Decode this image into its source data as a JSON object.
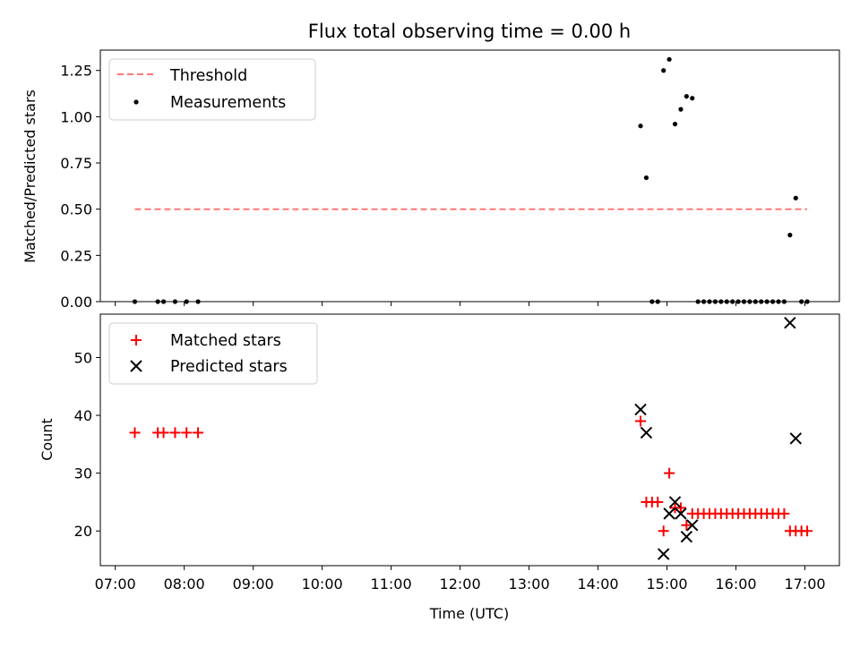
{
  "chart_data": [
    {
      "type": "scatter",
      "title": "Flux total observing time = 0.00 h",
      "xlabel": "",
      "ylabel": "Matched/Predicted stars",
      "xlim": [
        "06:47",
        "17:30"
      ],
      "ylim": [
        0,
        1.36
      ],
      "yticks": [
        0.0,
        0.25,
        0.5,
        0.75,
        1.0,
        1.25
      ],
      "ytick_labels": [
        "0.00",
        "0.25",
        "0.50",
        "0.75",
        "1.00",
        "1.25"
      ],
      "legend_position": "upper-left",
      "threshold": {
        "name": "Threshold",
        "x": [
          "07:17",
          "17:02"
        ],
        "y": 0.5,
        "color": "#ff7777",
        "style": "dashed"
      },
      "series": [
        {
          "name": "Measurements",
          "color": "#000000",
          "marker": "dot",
          "points": [
            [
              "07:17",
              0
            ],
            [
              "07:37",
              0
            ],
            [
              "07:42",
              0
            ],
            [
              "07:52",
              0
            ],
            [
              "08:02",
              0
            ],
            [
              "08:12",
              0
            ],
            [
              "14:37",
              0.95
            ],
            [
              "14:42",
              0.67
            ],
            [
              "14:47",
              0
            ],
            [
              "14:52",
              0
            ],
            [
              "14:57",
              1.25
            ],
            [
              "15:02",
              1.31
            ],
            [
              "15:07",
              0.96
            ],
            [
              "15:12",
              1.04
            ],
            [
              "15:17",
              1.11
            ],
            [
              "15:22",
              1.1
            ],
            [
              "15:27",
              0
            ],
            [
              "15:32",
              0
            ],
            [
              "15:37",
              0
            ],
            [
              "15:42",
              0
            ],
            [
              "15:47",
              0
            ],
            [
              "15:52",
              0
            ],
            [
              "15:57",
              0
            ],
            [
              "16:02",
              0
            ],
            [
              "16:07",
              0
            ],
            [
              "16:12",
              0
            ],
            [
              "16:17",
              0
            ],
            [
              "16:22",
              0
            ],
            [
              "16:27",
              0
            ],
            [
              "16:32",
              0
            ],
            [
              "16:37",
              0
            ],
            [
              "16:42",
              0
            ],
            [
              "16:47",
              0.36
            ],
            [
              "16:52",
              0.56
            ],
            [
              "16:57",
              0
            ],
            [
              "17:02",
              0
            ]
          ]
        }
      ]
    },
    {
      "type": "scatter",
      "title": "",
      "xlabel": "Time (UTC)",
      "ylabel": "Count",
      "xlim": [
        "06:47",
        "17:30"
      ],
      "ylim": [
        14,
        57.5
      ],
      "yticks": [
        20,
        30,
        40,
        50
      ],
      "ytick_labels": [
        "20",
        "30",
        "40",
        "50"
      ],
      "xticks": [
        "07:00",
        "08:00",
        "09:00",
        "10:00",
        "11:00",
        "12:00",
        "13:00",
        "14:00",
        "15:00",
        "16:00",
        "17:00"
      ],
      "xtick_labels": [
        "07:00",
        "08:00",
        "09:00",
        "10:00",
        "11:00",
        "12:00",
        "13:00",
        "14:00",
        "15:00",
        "16:00",
        "17:00"
      ],
      "legend_position": "upper-left",
      "series": [
        {
          "name": "Matched stars",
          "color": "#ff0000",
          "marker": "plus",
          "points": [
            [
              "07:17",
              37
            ],
            [
              "07:37",
              37
            ],
            [
              "07:42",
              37
            ],
            [
              "07:52",
              37
            ],
            [
              "08:02",
              37
            ],
            [
              "08:12",
              37
            ],
            [
              "14:37",
              39
            ],
            [
              "14:42",
              25
            ],
            [
              "14:47",
              25
            ],
            [
              "14:52",
              25
            ],
            [
              "14:57",
              20
            ],
            [
              "15:02",
              30
            ],
            [
              "15:07",
              24
            ],
            [
              "15:12",
              24
            ],
            [
              "15:17",
              21
            ],
            [
              "15:22",
              23
            ],
            [
              "15:27",
              23
            ],
            [
              "15:32",
              23
            ],
            [
              "15:37",
              23
            ],
            [
              "15:42",
              23
            ],
            [
              "15:47",
              23
            ],
            [
              "15:52",
              23
            ],
            [
              "15:57",
              23
            ],
            [
              "16:02",
              23
            ],
            [
              "16:07",
              23
            ],
            [
              "16:12",
              23
            ],
            [
              "16:17",
              23
            ],
            [
              "16:22",
              23
            ],
            [
              "16:27",
              23
            ],
            [
              "16:32",
              23
            ],
            [
              "16:37",
              23
            ],
            [
              "16:42",
              23
            ],
            [
              "16:47",
              20
            ],
            [
              "16:52",
              20
            ],
            [
              "16:57",
              20
            ],
            [
              "17:02",
              20
            ]
          ]
        },
        {
          "name": "Predicted stars",
          "color": "#000000",
          "marker": "x",
          "points": [
            [
              "14:37",
              41
            ],
            [
              "14:42",
              37
            ],
            [
              "14:57",
              16
            ],
            [
              "15:02",
              23
            ],
            [
              "15:07",
              25
            ],
            [
              "15:12",
              23
            ],
            [
              "15:17",
              19
            ],
            [
              "15:22",
              21
            ],
            [
              "16:47",
              56
            ],
            [
              "16:52",
              36
            ]
          ]
        }
      ]
    }
  ]
}
